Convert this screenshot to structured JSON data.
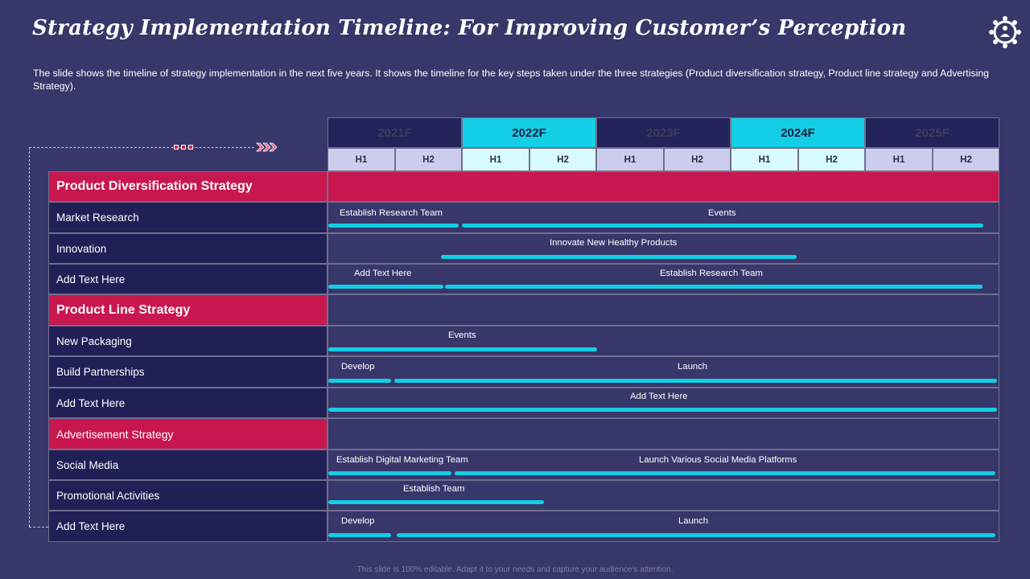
{
  "title": "Strategy Implementation Timeline: For Improving Customer’s Perception",
  "description": "The slide shows the timeline of strategy implementation in the next five years. It shows the timeline for the key steps taken under the three strategies (Product diversification  strategy, Product line strategy and Advertising Strategy).",
  "logo_icon": "gear-person-icon",
  "years": [
    "2021F",
    "2022F",
    "2023F",
    "2024F",
    "2025F"
  ],
  "halves": [
    "H1",
    "H2"
  ],
  "categories": {
    "product_diversification": "Product Diversification Strategy",
    "product_line": "Product Line Strategy",
    "advertisement": "Advertisement  Strategy"
  },
  "rows": {
    "market_research": {
      "label": "Market Research",
      "bars": [
        "Establish Research Team",
        "Events"
      ]
    },
    "innovation": {
      "label": "Innovation",
      "bars": [
        "Innovate New  Healthy Products"
      ]
    },
    "add_text_1": {
      "label": "Add Text Here",
      "bars": [
        "Add Text Here",
        "Establish Research Team"
      ]
    },
    "new_packaging": {
      "label": "New Packaging",
      "bars": [
        "Events"
      ]
    },
    "build_partnerships": {
      "label": "Build Partnerships",
      "bars": [
        "Develop",
        "Launch"
      ]
    },
    "add_text_2": {
      "label": "Add Text Here",
      "bars": [
        "Add Text Here"
      ]
    },
    "social_media": {
      "label": "Social Media",
      "bars": [
        "Establish Digital Marketing Team",
        "Launch Various Social Media Platforms"
      ]
    },
    "promotional": {
      "label": "Promotional Activities",
      "bars": [
        "Establish Team"
      ]
    },
    "add_text_3": {
      "label": "Add Text Here",
      "bars": [
        "Develop",
        "Launch"
      ]
    }
  },
  "colors": {
    "background": "#38376a",
    "accent_red": "#c8174e",
    "accent_cyan": "#12cfe5",
    "row_dark": "#201f56"
  },
  "footer": "This slide is 100% editable. Adapt it to your needs and capture your audience’s attention."
}
